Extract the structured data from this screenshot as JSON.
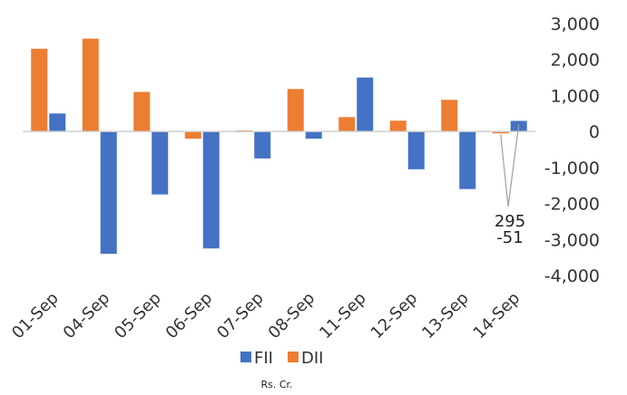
{
  "chart_data": {
    "type": "bar",
    "categories": [
      "01-Sep",
      "04-Sep",
      "05-Sep",
      "06-Sep",
      "07-Sep",
      "08-Sep",
      "11-Sep",
      "12-Sep",
      "13-Sep",
      "14-Sep"
    ],
    "series": [
      {
        "name": "FII",
        "color": "#4472C4",
        "values": [
          500,
          -3400,
          -1750,
          -3250,
          -750,
          -200,
          1500,
          -1050,
          -1600,
          295
        ]
      },
      {
        "name": "DII",
        "color": "#ED7D31",
        "values": [
          2300,
          2580,
          1100,
          -200,
          30,
          1180,
          400,
          300,
          880,
          -51
        ]
      }
    ],
    "ylim": [
      -4000,
      3000
    ],
    "yticks": [
      "3,000",
      "2,000",
      "1,000",
      "0",
      "-1,000",
      "-2,000",
      "-3,000",
      "-4,000"
    ],
    "annotations": [
      "295",
      "-51"
    ],
    "xlabel": "Rs. Cr.",
    "y_axis_position": "right",
    "legend_position": "bottom",
    "grid": false
  }
}
